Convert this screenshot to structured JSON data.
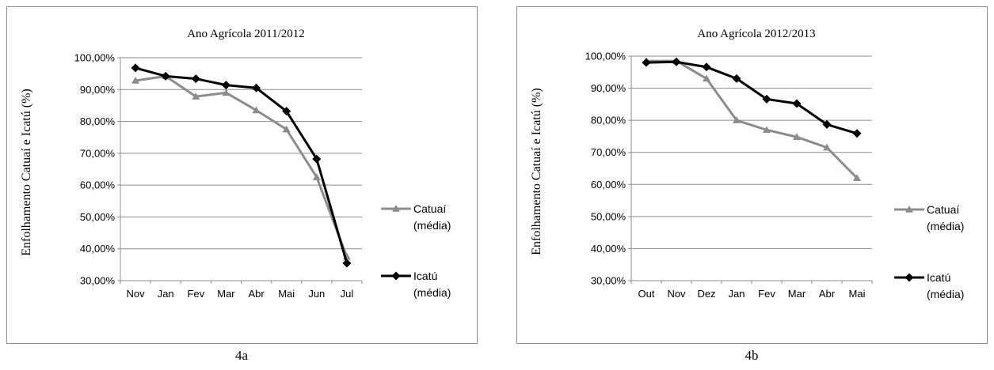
{
  "captions": [
    "4a",
    "4b"
  ],
  "chart_data": [
    {
      "type": "line",
      "title": "Ano Agrícola 2011/2012",
      "ylabel": "Enfolhamento Catuaí e Icatú (%)",
      "xlabel": "",
      "categories": [
        "Nov",
        "Jan",
        "Fev",
        "Mar",
        "Abr",
        "Mai",
        "Jun",
        "Jul"
      ],
      "ylim": [
        30,
        100
      ],
      "yticks": [
        "30,00%",
        "40,00%",
        "50,00%",
        "60,00%",
        "70,00%",
        "80,00%",
        "90,00%",
        "100,00%"
      ],
      "grid": true,
      "legend_position": "right",
      "series": [
        {
          "name": "Catuaí (média)",
          "legend_lines": [
            "Catuaí",
            "(média)"
          ],
          "color": "#8c8c8c",
          "marker": "triangle",
          "values": [
            92.8,
            94.2,
            87.8,
            89.0,
            83.5,
            77.5,
            62.5,
            37.5
          ]
        },
        {
          "name": "Icatú (média)",
          "legend_lines": [
            "Icatú",
            "(média)"
          ],
          "color": "#000000",
          "marker": "diamond",
          "values": [
            96.8,
            94.2,
            93.4,
            91.4,
            90.5,
            83.2,
            68.2,
            35.5
          ]
        }
      ]
    },
    {
      "type": "line",
      "title": "Ano Agrícola 2012/2013",
      "ylabel": "Enfolhamento Catuaí e Icatú (%)",
      "xlabel": "",
      "categories": [
        "Out",
        "Nov",
        "Dez",
        "Jan",
        "Fev",
        "Mar",
        "Abr",
        "Mai"
      ],
      "ylim": [
        30,
        100
      ],
      "yticks": [
        "30,00%",
        "40,00%",
        "50,00%",
        "60,00%",
        "70,00%",
        "80,00%",
        "90,00%",
        "100,00%"
      ],
      "grid": true,
      "legend_position": "right",
      "series": [
        {
          "name": "Catuaí (média)",
          "legend_lines": [
            "Catuaí",
            "(média)"
          ],
          "color": "#8c8c8c",
          "marker": "triangle",
          "values": [
            98.5,
            98.5,
            93.0,
            80.0,
            77.0,
            74.8,
            71.5,
            62.0
          ]
        },
        {
          "name": "Icatú (média)",
          "legend_lines": [
            "Icatú",
            "(média)"
          ],
          "color": "#000000",
          "marker": "diamond",
          "values": [
            98.0,
            98.2,
            96.6,
            93.0,
            86.6,
            85.2,
            78.7,
            75.9
          ]
        }
      ]
    }
  ]
}
